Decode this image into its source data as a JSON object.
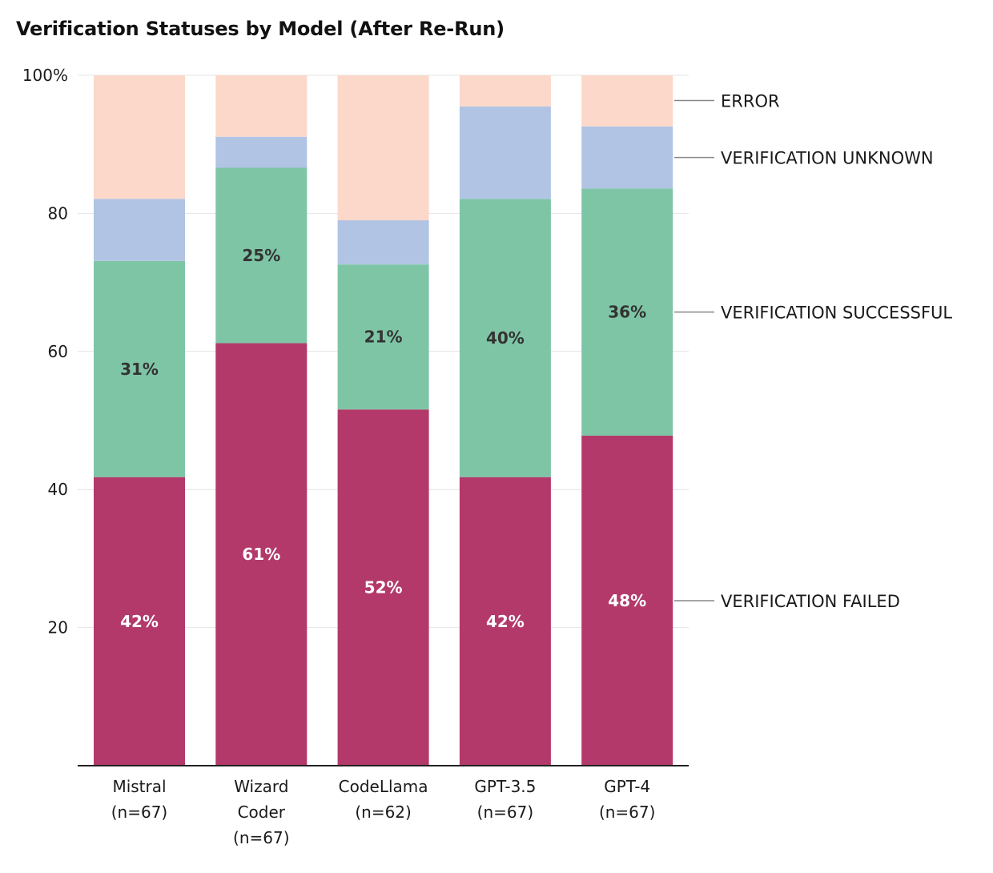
{
  "chart_data": {
    "type": "bar",
    "stacked": true,
    "title": "Verification Statuses by Model (After Re-Run)",
    "xlabel": "",
    "ylabel": "",
    "ylim": [
      0,
      100
    ],
    "yticks": [
      20,
      40,
      60,
      80,
      100
    ],
    "ytick_labels": [
      "20",
      "40",
      "60",
      "80",
      "100%"
    ],
    "grid": true,
    "legend": "right",
    "categories": [
      [
        "Mistral",
        "(n=67)"
      ],
      [
        "Wizard",
        "Coder",
        "(n=67)"
      ],
      [
        "CodeLlama",
        "(n=62)"
      ],
      [
        "GPT-3.5",
        "(n=67)"
      ],
      [
        "GPT-4",
        "(n=67)"
      ]
    ],
    "series": [
      {
        "name": "VERIFICATION FAILED",
        "color": "#b3396b",
        "label_color": "#ffffff",
        "values": [
          41.8,
          61.2,
          51.6,
          41.8,
          47.8
        ],
        "labels": [
          "42%",
          "61%",
          "52%",
          "42%",
          "48%"
        ]
      },
      {
        "name": "VERIFICATION SUCCESSFUL",
        "color": "#7ec5a6",
        "label_color": "#333333",
        "values": [
          31.3,
          25.4,
          21.0,
          40.3,
          35.8
        ],
        "labels": [
          "31%",
          "25%",
          "21%",
          "40%",
          "36%"
        ]
      },
      {
        "name": "VERIFICATION UNKNOWN",
        "color": "#b1c4e4",
        "label_color": "#333333",
        "values": [
          9.0,
          4.5,
          6.4,
          13.4,
          9.0
        ],
        "labels": [
          "",
          "",
          "",
          "",
          ""
        ]
      },
      {
        "name": "ERROR",
        "color": "#fbd8ca",
        "label_color": "#333333",
        "values": [
          17.9,
          9.0,
          21.0,
          4.5,
          7.5
        ],
        "labels": [
          "",
          "",
          "",
          "",
          ""
        ]
      }
    ]
  }
}
